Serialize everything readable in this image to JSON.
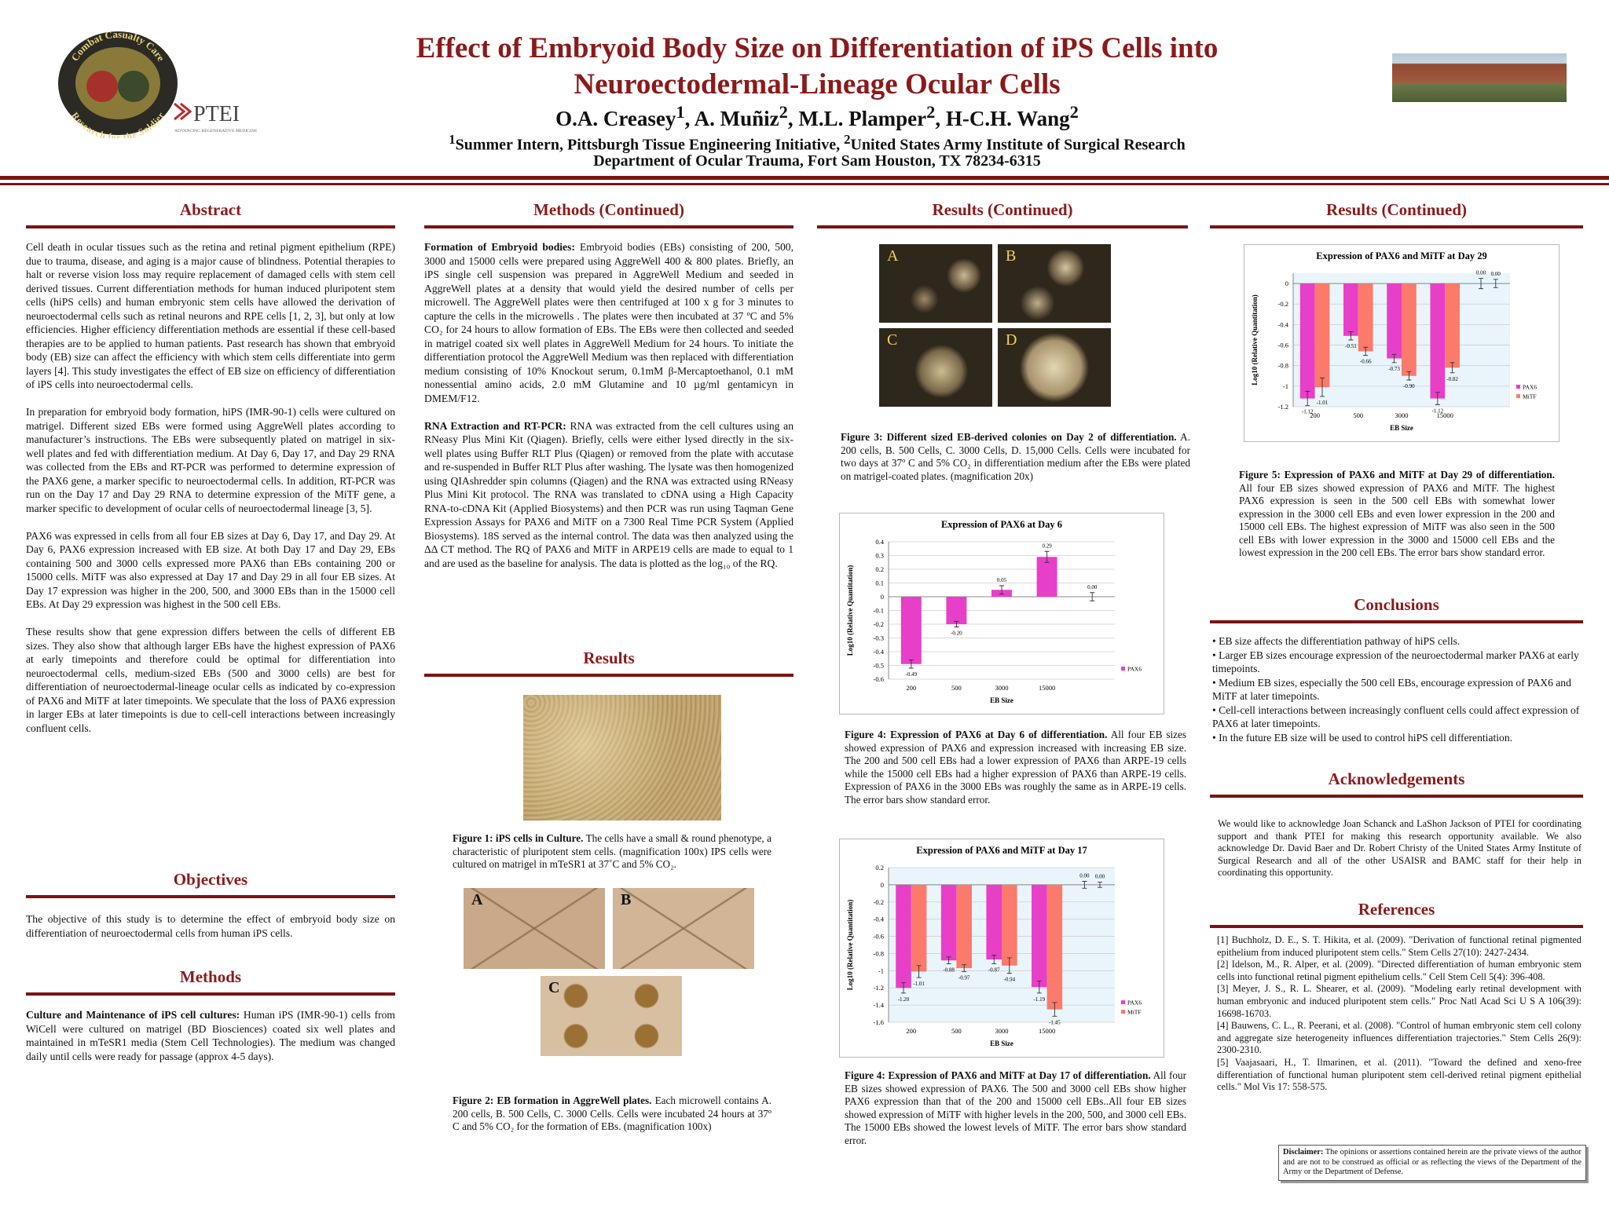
{
  "header": {
    "logo_left": {
      "top_text": "Combat Casualty Care",
      "bottom_text": "Research for the Soldier"
    },
    "logo_ptei": {
      "name": "PTEI",
      "tagline": "ADVANCING REGENERATIVE MEDICINE"
    },
    "title": [
      "Effect of Embryoid Body Size on Differentiation of iPS Cells into",
      "Neuroectodermal-Lineage Ocular  Cells"
    ],
    "authors": [
      {
        "name": "O.A. Creasey",
        "sup": "1",
        "sep": ","
      },
      {
        "name": "A. Muñiz",
        "sup": "2",
        "sep": ","
      },
      {
        "name": "M.L. Plamper",
        "sup": "2",
        "sep": ","
      },
      {
        "name": "H-C.H. Wang",
        "sup": "2"
      }
    ],
    "affiliations": [
      {
        "sup": "1",
        "text": "Summer Intern, Pittsburgh Tissue Engineering Initiative,"
      },
      {
        "sup": "2",
        "text": "United States Army Institute of Surgical Research"
      }
    ],
    "department": "Department of Ocular Trauma, Fort Sam Houston, TX 78234-6315"
  },
  "abstract": {
    "heading": "Abstract",
    "paragraphs": [
      "Cell death in ocular tissues such as the retina and retinal pigment epithelium (RPE) due to trauma, disease, and aging is a major cause of blindness. Potential therapies to halt or reverse vision loss may require replacement of damaged cells with stem cell derived tissues. Current differentiation methods for human induced pluripotent stem cells (hiPS cells) and human embryonic stem cells have allowed the derivation of neuroectodermal cells such as retinal neurons and RPE cells [1, 2, 3], but only at low efficiencies. Higher efficiency differentiation methods are essential if these cell-based therapies are to be applied to human patients. Past research has shown that embryoid body (EB) size can affect the efficiency with which stem cells differentiate into germ layers [4]. This study investigates the effect of EB size on efficiency of differentiation of iPS cells into neuroectodermal cells.",
      "In preparation for embryoid body formation, hiPS (IMR-90-1) cells were cultured on matrigel. Different sized EBs were formed using AggreWell plates according to manufacturer’s instructions. The EBs were subsequently plated on matrigel in six-well plates and fed with differentiation medium. At Day 6, Day 17, and Day 29 RNA was collected from the EBs and RT-PCR was performed to determine expression of the PAX6 gene, a marker specific to neuroectodermal cells. In addition, RT-PCR was run on the Day 17 and Day 29 RNA to determine expression of the MiTF gene, a marker specific to development of ocular cells of neuroectodermal lineage [3, 5].",
      "PAX6 was expressed in cells from all four EB sizes at Day 6, Day 17, and Day 29. At Day 6, PAX6 expression increased with EB size. At both Day 17 and Day 29, EBs containing 500 and 3000 cells expressed more PAX6 than EBs containing 200 or 15000 cells. MiTF was also expressed at Day 17 and Day 29 in all four EB sizes. At Day 17 expression was higher in the 200, 500, and 3000 EBs than in the 15000 cell EBs. At Day 29 expression was highest in the 500 cell EBs.",
      "These results show that gene expression differs between the cells of different EB sizes. They also show that although larger EBs have the highest expression of PAX6 at early timepoints and therefore could be optimal for differentiation into neuroectodermal cells, medium-sized EBs (500 and 3000 cells) are best for differentiation of neuroectodermal-lineage ocular cells as indicated by co-expression of PAX6 and MiTF at later timepoints. We speculate that the loss of PAX6 expression in larger EBs at later timepoints is due to cell-cell interactions between increasingly confluent cells."
    ]
  },
  "objectives": {
    "heading": "Objectives",
    "text": "The objective of this study is to determine the effect of embryoid body size on differentiation of neuroectodermal cells from human iPS cells."
  },
  "methods": {
    "heading": "Methods",
    "paragraphs": [
      {
        "lead": "Culture and Maintenance of iPS cell cultures:",
        "text": "Human iPS (IMR-90-1) cells from WiCell were cultured on matrigel (BD Biosciences) coated six well plates and maintained in mTeSR1 media (Stem Cell Technologies). The medium was changed daily until cells were ready for passage (approx 4-5 days)."
      }
    ]
  },
  "methods_continued": {
    "heading": "Methods (Continued)",
    "paragraphs": [
      {
        "lead": "Formation of Embryoid bodies:",
        "text": "Embryoid bodies (EBs) consisting of 200, 500, 3000 and 15000 cells were prepared using  AggreWell 400 & 800 plates. Briefly, an iPS single cell suspension was prepared in AggreWell Medium and seeded in AggreWell plates at a density that would yield the desired number of cells per microwell. The AggreWell plates were then centrifuged at 100 x g for 3 minutes to capture the cells in the microwells . The plates were then incubated at 37 ºC and 5% CO₂ for 24 hours to allow formation of EBs. The EBs were then collected and seeded in matrigel coated six well plates in AggreWell Medium for 24 hours. To initiate the differentiation protocol the AggreWell Medium was then replaced with differentiation medium consisting of 10% Knockout serum, 0.1mM β-Mercaptoethanol, 0.1 mM nonessential amino acids, 2.0 mM Glutamine and 10 µg/ml gentamicyn in DMEM/F12."
      },
      {
        "lead": "RNA Extraction and RT-PCR:",
        "text": "RNA was extracted from the cell cultures using an RNeasy Plus Mini Kit (Qiagen). Briefly, cells were either lysed directly in the six-well plates using Buffer RLT Plus (Qiagen) or removed from the plate with accutase and re-suspended in Buffer RLT Plus after washing. The lysate was then homogenized using QIAshredder spin columns (Qiagen) and the RNA was extracted using RNeasy Plus Mini Kit protocol. The RNA was translated to cDNA using a High Capacity RNA-to-cDNA Kit (Applied Biosystems) and then PCR was run using Taqman Gene Expression Assays for PAX6 and MiTF on a 7300 Real Time PCR System (Applied Biosystems). 18S served as the internal control. The data was then analyzed using the ΔΔ CT method. The RQ of PAX6 and MiTF in ARPE19 cells are made to equal to 1 and are used as the baseline for analysis. The data is plotted as the log₁₀ of the RQ."
      }
    ]
  },
  "results": {
    "heading": "Results",
    "figures": [
      {
        "caption_lead": "Figure 1: iPS cells in Culture.",
        "caption_text": "The cells have a small & round phenotype, a characteristic of pluripotent stem cells. (magnification 100x) IPS cells  were cultured on matrigel in mTeSR1 at 37˚C and 5% CO₂."
      },
      {
        "panels": [
          "A",
          "B",
          "C"
        ],
        "caption_lead": "Figure 2: EB formation in AggreWell plates.",
        "caption_text": "Each microwell contains A. 200 cells, B. 500 Cells, C. 3000 Cells. Cells were incubated 24 hours at 37º C and 5% CO₂ for the formation of EBs. (magnification 100x)"
      }
    ]
  },
  "results_continued": {
    "heading": "Results (Continued)",
    "figures": [
      {
        "panels": [
          "A",
          "B",
          "C",
          "D"
        ],
        "caption_lead": "Figure 3: Different sized EB-derived colonies on Day 2 of differentiation.",
        "caption_text": "A. 200 cells, B. 500 Cells, C. 3000 Cells, D. 15,000 Cells. Cells were incubated  for two days at 37º C and 5% CO₂ in differentiation medium after the EBs were plated on matrigel-coated plates.  (magnification 20x)"
      },
      {
        "caption_lead": "Figure 4: Expression of PAX6 at Day 6 of differentiation.",
        "caption_text": "All four EB sizes showed expression of PAX6 and expression increased with increasing EB size. The 200 and 500 cell EBs had a lower expression of PAX6 than ARPE-19 cells while the 15000 cell EBs had a higher expression of PAX6 than ARPE-19 cells. Expression of PAX6 in the 3000 EBs was roughly the same as in ARPE-19 cells. The error bars show standard error."
      },
      {
        "caption_lead": "Figure 4: Expression of PAX6 and MiTF at Day 17 of differentiation.",
        "caption_text": "All four EB sizes showed expression of PAX6. The 500 and 3000 cell EBs show higher PAX6 expression than that of the 200 and 15000 cell EBs..All four EB sizes showed expression of MiTF with higher levels in the 200, 500, and 3000 cell EBs. The 15000 EBs showed the lowest levels of MiTF. The error bars show standard error."
      }
    ]
  },
  "results_continued_2": {
    "heading": "Results (Continued)",
    "figures": [
      {
        "caption_lead": "Figure 5: Expression of PAX6 and MiTF at Day 29 of differentiation.",
        "caption_text": "All four EB sizes showed expression of PAX6 and MiTF. The highest PAX6 expression is seen in the 500 cell EBs with somewhat lower expression in the 3000 cell EBs and even lower expression in the 200 and 15000 cell EBs. The highest expression of MiTF was also seen in the 500 cell EBs with lower expression in the 3000 and 15000 cell EBs and the lowest expression in the 200 cell EBs. The error bars show standard error."
      }
    ]
  },
  "conclusions": {
    "heading": "Conclusions",
    "items": [
      "• EB size affects the differentiation pathway of hiPS cells.",
      "• Larger EB sizes encourage expression of the neuroectodermal marker PAX6 at early timepoints.",
      "• Medium EB sizes, especially the 500 cell EBs,  encourage expression of PAX6 and MiTF at later timepoints.",
      "• Cell-cell interactions between increasingly confluent cells could affect expression of PAX6 at later timepoints.",
      "• In the future EB size will be used to control hiPS cell differentiation."
    ]
  },
  "acknowledgements": {
    "heading": "Acknowledgements",
    "text": "We would like to acknowledge Joan Schanck and LaShon Jackson of PTEI for coordinating support and thank PTEI for making this research opportunity available. We also acknowledge  Dr. David Baer and Dr. Robert Christy of the United States Army Institute of Surgical Research  and all of the other USAISR and BAMC staff for their help in coordinating this opportunity."
  },
  "references": {
    "heading": "References",
    "items": [
      "[1] Buchholz, D. E., S. T. Hikita, et al. (2009). \"Derivation of functional retinal pigmented epithelium from induced pluripotent stem cells.\" Stem Cells 27(10): 2427-2434.",
      "[2] Idelson, M., R. Alper, et al. (2009). \"Directed differentiation of human embryonic stem cells into functional retinal pigment epithelium cells.\" Cell Stem Cell 5(4): 396-408.",
      "[3] Meyer, J. S., R. L. Shearer, et al. (2009). \"Modeling early retinal development with human embryonic and induced pluripotent stem cells.\" Proc Natl Acad Sci U S A 106(39): 16698-16703.",
      "[4] Bauwens, C. L., R. Peerani, et al. (2008). \"Control of human embryonic stem cell colony and aggregate size heterogeneity influences differentiation trajectories.\" Stem Cells 26(9): 2300-2310.",
      "[5] Vaajasaari, H., T. Ilmarinen, et al. (2011). \"Toward the defined and xeno-free differentiation of functional human pluripotent stem cell-derived retinal pigment epithelial cells.\" Mol Vis 17: 558-575."
    ]
  },
  "disclaimer": {
    "lead": "Disclaimer:",
    "text": "The opinions or assertions contained herein are the private views of the author and are not to be construed as official or as reflecting the views of the Department of the Army or the Department of Defense."
  },
  "chart_data": [
    {
      "type": "bar",
      "title": "Expression of PAX6 at Day 6",
      "y_label": "Log10 (Relative Quantitation)",
      "x_label": "EB Size",
      "categories": [
        "200",
        "500",
        "3000",
        "15000",
        null
      ],
      "series": [
        {
          "name": "PAX6",
          "color": "#e83fc8",
          "values": [
            -0.49,
            -0.2,
            0.05,
            0.29,
            0
          ],
          "value_labels": [
            "-0.49",
            "-0.20",
            "0.05",
            "0.29",
            "0.00"
          ],
          "errors": [
            0.03,
            0.02,
            0.03,
            0.04,
            0.03
          ]
        }
      ],
      "ylim": [
        -0.6,
        0.4
      ],
      "yticks": [
        0.4,
        0.3,
        0.2,
        0.1,
        0,
        -0.1,
        -0.2,
        -0.3,
        -0.4,
        -0.5,
        -0.6
      ],
      "grid": true,
      "legend": "bottom-right"
    },
    {
      "type": "bar",
      "title": "Expression of PAX6 and MiTF at Day 17",
      "y_label": "Log10 (Relative Quantitation)",
      "x_label": "EB Size",
      "categories": [
        "200",
        "500",
        "3000",
        "15000",
        null
      ],
      "series": [
        {
          "name": "PAX6",
          "color": "#e83fc8",
          "values": [
            -1.2,
            -0.88,
            -0.87,
            -1.19,
            0
          ],
          "value_labels": [
            "-1.20",
            "-0.88",
            "-0.87",
            "-1.19",
            "0.00"
          ],
          "errors": [
            0.06,
            0.04,
            0.05,
            0.07,
            0.04
          ]
        },
        {
          "name": "MiTF",
          "color": "#fb7a6b",
          "values": [
            -1.01,
            -0.97,
            -0.94,
            -1.45,
            0
          ],
          "value_labels": [
            "-1.01",
            "-0.97",
            "-0.94",
            "-1.45",
            "0.00"
          ],
          "errors": [
            0.07,
            0.04,
            0.09,
            0.08,
            0.03
          ]
        }
      ],
      "ylim": [
        -1.6,
        0.2
      ],
      "yticks": [
        0.2,
        0,
        -0.2,
        -0.4,
        -0.6,
        -0.8,
        -1,
        -1.2,
        -1.4,
        -1.6
      ],
      "grid": true,
      "legend": "bottom-right"
    },
    {
      "type": "bar",
      "title": "Expression of  PAX6 and MiTF at Day 29",
      "y_label": "Log10 (Relative Quantitation)",
      "x_label": "EB Size",
      "categories": [
        "200",
        "500",
        "3000",
        "15000",
        null
      ],
      "series": [
        {
          "name": "PAX6",
          "color": "#e83fc8",
          "values": [
            -1.12,
            -0.51,
            -0.73,
            -1.12,
            0
          ],
          "value_labels": [
            "-1.12",
            "-0.51",
            "-0.73",
            "-1.12",
            "0.00"
          ],
          "errors": [
            0.07,
            0.04,
            0.04,
            0.06,
            0.05
          ]
        },
        {
          "name": "MiTF",
          "color": "#fb7a6b",
          "values": [
            -1.01,
            -0.66,
            -0.9,
            -0.82,
            0
          ],
          "value_labels": [
            "-1.01",
            "-0.66",
            "-0.90",
            "-0.82",
            "0.00"
          ],
          "errors": [
            0.09,
            0.04,
            0.04,
            0.05,
            0.04
          ]
        }
      ],
      "ylim": [
        -1.2,
        0.1
      ],
      "yticks": [
        0,
        -0.2,
        -0.4,
        -0.6,
        -0.8,
        -1,
        -1.2
      ],
      "grid": true,
      "legend": "bottom-right"
    }
  ]
}
